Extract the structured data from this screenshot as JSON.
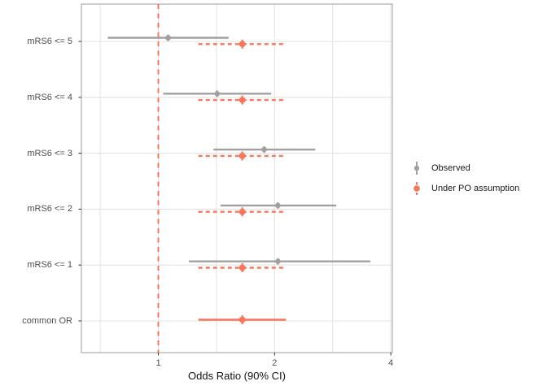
{
  "figure": {
    "background": "#ffffff"
  },
  "axes": {
    "x_title": "Odds Ratio (90% CI)",
    "x_tick_labels": [
      "1",
      "2",
      "4"
    ],
    "y_categories": [
      "mRS6 <= 5",
      "mRS6 <= 4",
      "mRS6 <= 3",
      "mRS6 <= 2",
      "mRS6 <= 1",
      "common OR"
    ]
  },
  "legend": {
    "items": [
      {
        "label": "Observed",
        "color": "#a0a0a0",
        "line_style": "solid"
      },
      {
        "label": "Under PO assumption",
        "color": "#f8765c",
        "line_style": "dashed"
      }
    ]
  },
  "colors": {
    "observed": "#a0a0a0",
    "po": "#f8765c",
    "reference_line": "#f8765c",
    "gridline": "#e3e3e3",
    "panel_border": "#adadad",
    "tick_mark": "#333333",
    "tick_text": "#4d4d4d"
  },
  "chart_data": {
    "type": "scatter",
    "subtype": "forest-pointrange",
    "title": "",
    "xlabel": "Odds Ratio (90% CI)",
    "ylabel": "",
    "x_scale": "log2",
    "x_ticks": [
      1,
      2,
      4
    ],
    "xlim": [
      0.63,
      4.04
    ],
    "reference_line_x": 1,
    "grid": true,
    "legend_position": "right",
    "categories": [
      "mRS6 <= 5",
      "mRS6 <= 4",
      "mRS6 <= 3",
      "mRS6 <= 2",
      "mRS6 <= 1",
      "common OR"
    ],
    "series": [
      {
        "name": "Observed",
        "style": "solid",
        "color": "#a0a0a0",
        "values": [
          {
            "low": 0.74,
            "est": 1.06,
            "high": 1.52
          },
          {
            "low": 1.03,
            "est": 1.42,
            "high": 1.96
          },
          {
            "low": 1.39,
            "est": 1.88,
            "high": 2.55
          },
          {
            "low": 1.45,
            "est": 2.04,
            "high": 2.89
          },
          {
            "low": 1.2,
            "est": 2.04,
            "high": 3.54
          },
          null
        ]
      },
      {
        "name": "Under PO assumption",
        "style": "dashed",
        "color": "#f8765c",
        "values": [
          {
            "low": 1.27,
            "est": 1.65,
            "high": 2.14
          },
          {
            "low": 1.27,
            "est": 1.65,
            "high": 2.14
          },
          {
            "low": 1.27,
            "est": 1.65,
            "high": 2.14
          },
          {
            "low": 1.27,
            "est": 1.65,
            "high": 2.14
          },
          {
            "low": 1.27,
            "est": 1.65,
            "high": 2.14
          },
          null
        ]
      },
      {
        "name": "common OR (under PO assumption)",
        "style": "solid",
        "color": "#f8765c",
        "values": [
          null,
          null,
          null,
          null,
          null,
          {
            "low": 1.27,
            "est": 1.65,
            "high": 2.14
          }
        ]
      }
    ]
  }
}
